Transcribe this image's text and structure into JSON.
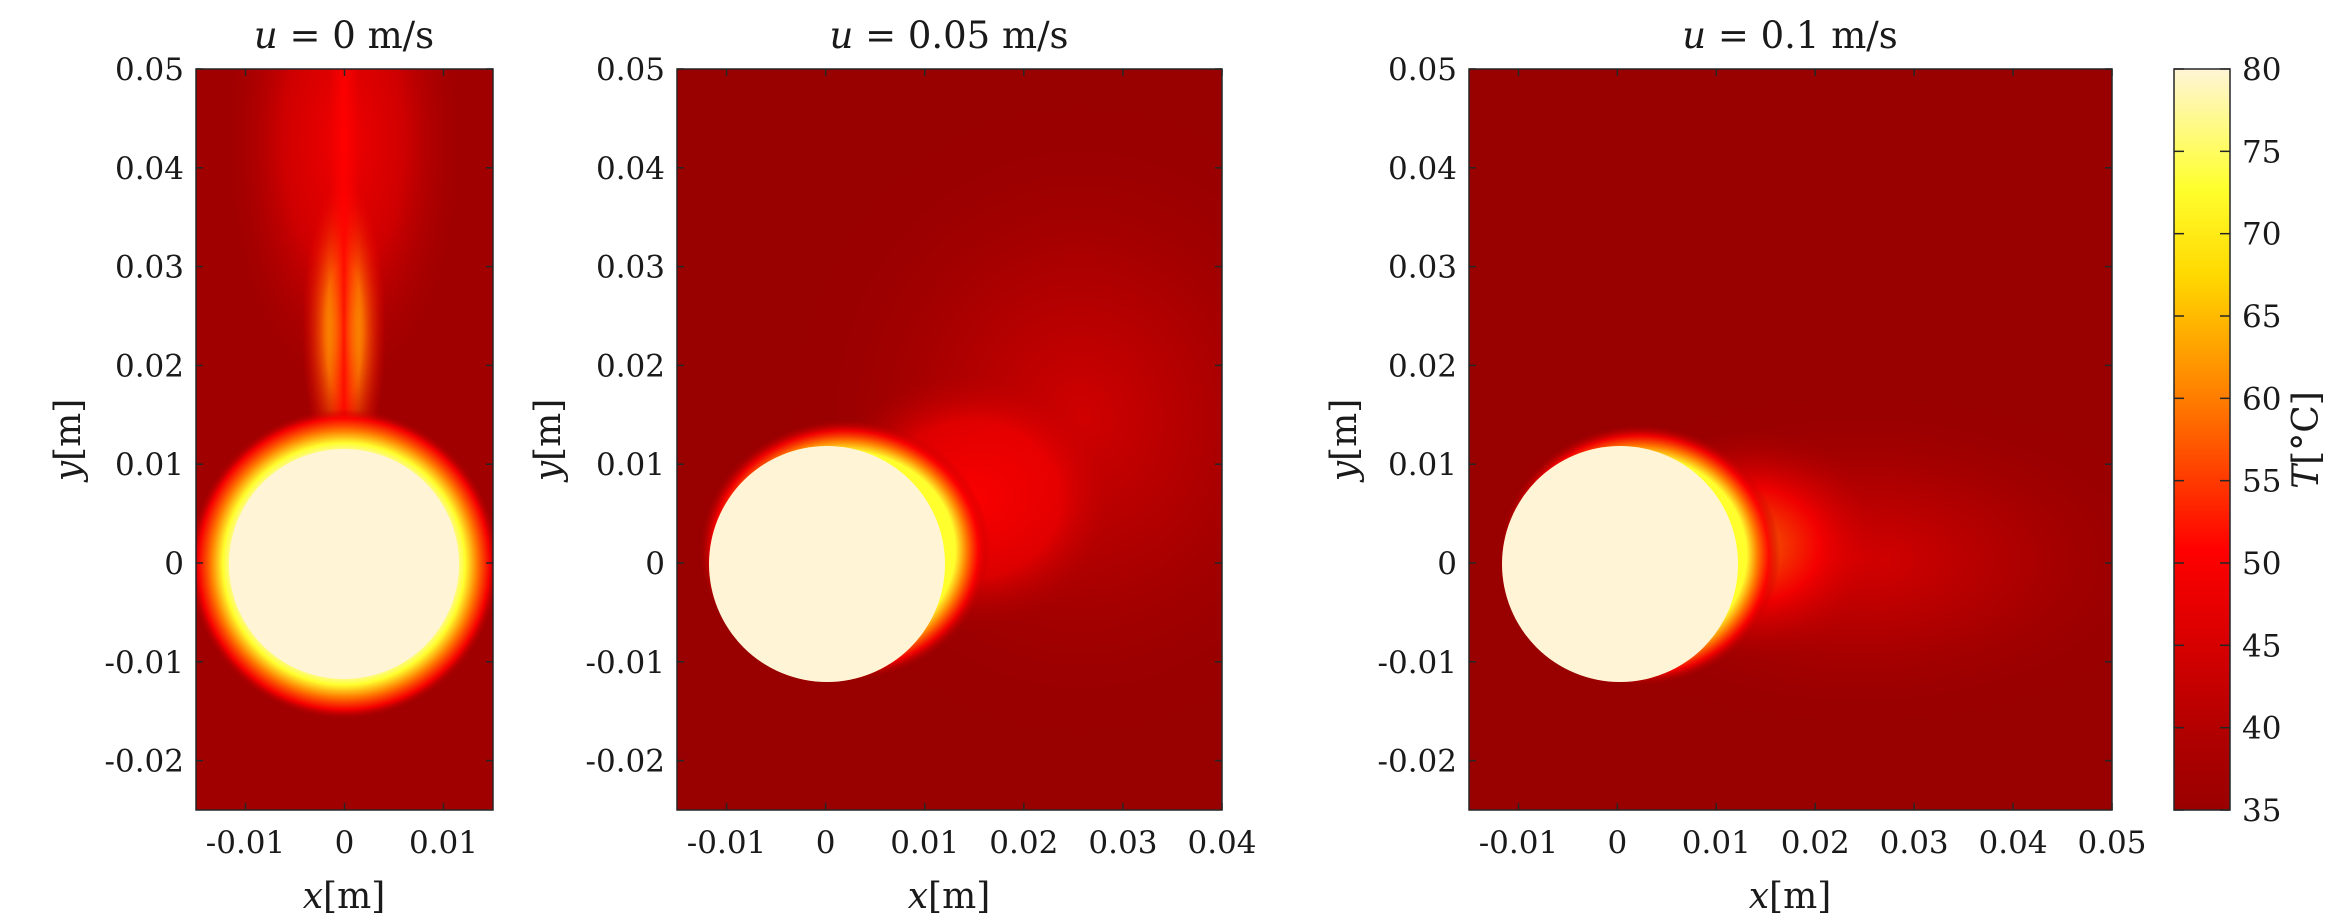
{
  "chart_data": [
    {
      "type": "heatmap",
      "title_var": "u",
      "title_rest": "= 0 m/s",
      "xlabel_var": "x",
      "xlabel_unit": "[m]",
      "ylabel_var": "y",
      "ylabel_unit": "[m]",
      "xlim": [
        -0.015,
        0.015
      ],
      "ylim": [
        -0.025,
        0.05
      ],
      "xticks": [
        -0.01,
        0,
        0.01
      ],
      "xtick_labels": [
        "-0.01",
        "0",
        "0.01"
      ],
      "yticks": [
        -0.02,
        -0.01,
        0,
        0.01,
        0.02,
        0.03,
        0.04,
        0.05
      ],
      "ytick_labels": [
        "-0.02",
        "-0.01",
        "0",
        "0.01",
        "0.02",
        "0.03",
        "0.04",
        "0.05"
      ],
      "heat_source": {
        "center": [
          0,
          0
        ],
        "radius": 0.012,
        "temperature": 80
      },
      "ambient_temperature": 37,
      "plume_direction": "up"
    },
    {
      "type": "heatmap",
      "title_var": "u",
      "title_rest": "= 0.05 m/s",
      "xlabel_var": "x",
      "xlabel_unit": "[m]",
      "ylabel_var": "y",
      "ylabel_unit": "[m]",
      "xlim": [
        -0.015,
        0.04
      ],
      "ylim": [
        -0.025,
        0.05
      ],
      "xticks": [
        -0.01,
        0,
        0.01,
        0.02,
        0.03,
        0.04
      ],
      "xtick_labels": [
        "-0.01",
        "0",
        "0.01",
        "0.02",
        "0.03",
        "0.04"
      ],
      "yticks": [
        -0.02,
        -0.01,
        0,
        0.01,
        0.02,
        0.03,
        0.04,
        0.05
      ],
      "ytick_labels": [
        "-0.02",
        "-0.01",
        "0",
        "0.01",
        "0.02",
        "0.03",
        "0.04",
        "0.05"
      ],
      "heat_source": {
        "center": [
          0,
          0
        ],
        "radius": 0.012,
        "temperature": 80
      },
      "ambient_temperature": 37,
      "plume_direction": "right-up"
    },
    {
      "type": "heatmap",
      "title_var": "u",
      "title_rest": "= 0.1 m/s",
      "xlabel_var": "x",
      "xlabel_unit": "[m]",
      "ylabel_var": "y",
      "ylabel_unit": "[m]",
      "xlim": [
        -0.015,
        0.05
      ],
      "ylim": [
        -0.025,
        0.05
      ],
      "xticks": [
        -0.01,
        0,
        0.01,
        0.02,
        0.03,
        0.04,
        0.05
      ],
      "xtick_labels": [
        "-0.01",
        "0",
        "0.01",
        "0.02",
        "0.03",
        "0.04",
        "0.05"
      ],
      "yticks": [
        -0.02,
        -0.01,
        0,
        0.01,
        0.02,
        0.03,
        0.04,
        0.05
      ],
      "ytick_labels": [
        "-0.02",
        "-0.01",
        "0",
        "0.01",
        "0.02",
        "0.03",
        "0.04",
        "0.05"
      ],
      "heat_source": {
        "center": [
          0,
          0
        ],
        "radius": 0.012,
        "temperature": 80
      },
      "ambient_temperature": 37,
      "plume_direction": "right"
    }
  ],
  "colorbar": {
    "label_var": "T",
    "label_unit": "[°C]",
    "range": [
      35,
      80
    ],
    "ticks": [
      35,
      40,
      45,
      50,
      55,
      60,
      65,
      70,
      75,
      80
    ],
    "tick_labels": [
      "35",
      "40",
      "45",
      "50",
      "55",
      "60",
      "65",
      "70",
      "75",
      "80"
    ],
    "colormap": "hot",
    "color_stops": [
      "#9a0000",
      "#b00000",
      "#ff0000",
      "#ff7a00",
      "#ffd800",
      "#ffff2e",
      "#fff5d6"
    ]
  }
}
